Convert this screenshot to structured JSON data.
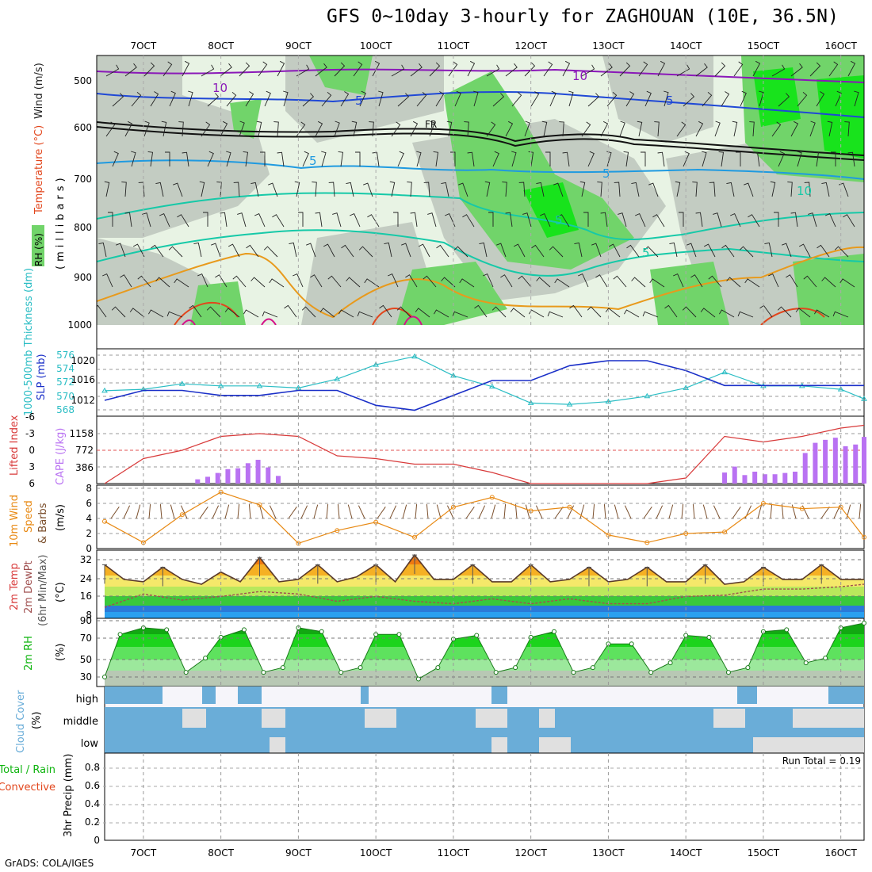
{
  "title": "GFS 0~10day 3-hourly for ZAGHOUAN (10E, 36.5N)",
  "credit": "GrADS: COLA/IGES",
  "colors": {
    "rh_light": "#e8f3e4",
    "rh_mid": "#c3ccc2",
    "rh_green": "#71d46a",
    "rh_bright": "#18e31c",
    "wind_barb": "#222222",
    "temp_purple": "#8a18b8",
    "temp_blue": "#1f48d6",
    "temp_lightblue": "#1f9ae0",
    "temp_teal": "#16c9a8",
    "temp_orange": "#e89a1c",
    "temp_red": "#e2461c",
    "temp_magenta": "#d4138a",
    "slp_line": "#1a2fc8",
    "thickness_line": "#2abdc4",
    "li_line": "#d83a3a",
    "cape_bar": "#b972f2",
    "wind10_line": "#e88a15",
    "barb_brown": "#7b4f2c",
    "dewpt_line": "#a05050",
    "tmax_bar": "#555555",
    "rh2m_dark": "#0fb40f",
    "cloud_blue": "#6aadd8",
    "cloud_gray": "#e0e0e0",
    "cloud_white": "#f6f5fa"
  },
  "x_axis": {
    "labels": [
      "7OCT",
      "8OCT",
      "9OCT",
      "10OCT",
      "11OCT",
      "12OCT",
      "13OCT",
      "14OCT",
      "15OCT",
      "16OCT"
    ],
    "start_day": 6.5,
    "end_day": 16.3
  },
  "panels": {
    "upper": {
      "ylabel_rh": "RH (%)",
      "ylabel_temp": "Temperature (°C)",
      "ylabel_wind": "Wind (m/s)",
      "ylabel_units": "(millibars)",
      "yticks": [
        500,
        600,
        700,
        800,
        900,
        1000
      ],
      "contour_labels": [
        "10",
        "10",
        "5",
        "5",
        "5",
        "FR",
        "5",
        "5",
        "10",
        "5"
      ]
    },
    "thickness": {
      "ylabel_left": "1000-500mb Thickness (dm)",
      "ylabel_right": "SLP (mb)",
      "yticks_left": [
        568,
        570,
        572,
        574,
        576
      ],
      "yticks_right": [
        1012,
        1016,
        1020
      ]
    },
    "instability": {
      "ylabel_left": "Lifted Index",
      "ylabel_right": "CAPE (J/kg)",
      "yticks_left": [
        "6",
        "3",
        "0",
        "-3",
        "-6"
      ],
      "yticks_right": [
        "386",
        "772",
        "1158"
      ]
    },
    "wind10": {
      "ylabel_a": "10m Wind",
      "ylabel_b": "Speed",
      "ylabel_c": "& Barbs",
      "ylabel_units": "(m/s)",
      "yticks": [
        0,
        2,
        4,
        6,
        8
      ]
    },
    "temp2m": {
      "ylabel_a": "2m Temp",
      "ylabel_b": "2m DewPt",
      "ylabel_c": "(6hr Min/Max)",
      "ylabel_units": "(°C)",
      "yticks": [
        8,
        16,
        24,
        32
      ]
    },
    "rh2m": {
      "ylabel": "2m RH",
      "ylabel_units": "(%)",
      "yticks": [
        30,
        50,
        70,
        90
      ]
    },
    "cloud": {
      "ylabel": "Cloud Cover",
      "ylabel_units": "(%)",
      "levels": [
        "high",
        "middle",
        "low"
      ]
    },
    "precip": {
      "ylabel_a": "Total / Rain",
      "ylabel_b": "Convective",
      "ylabel_c": "3hr Precip (mm)",
      "yticks": [
        "0",
        "0.2",
        "0.4",
        "0.6",
        "0.8"
      ],
      "run_total": "Run Total = 0.19"
    }
  },
  "chart_data": [
    {
      "type": "line",
      "name": "slp_mb",
      "x": [
        6.5,
        7.0,
        7.5,
        8.0,
        8.5,
        9.0,
        9.5,
        10.0,
        10.5,
        11.0,
        11.5,
        12.0,
        12.5,
        13.0,
        13.5,
        14.0,
        14.5,
        15.0,
        15.5,
        16.0,
        16.3
      ],
      "values": [
        1012,
        1014,
        1014,
        1013,
        1013,
        1014,
        1014,
        1011,
        1010,
        1013,
        1016,
        1016,
        1019,
        1020,
        1020,
        1018,
        1015,
        1015,
        1015,
        1015,
        1015
      ]
    },
    {
      "type": "line",
      "name": "thickness_dm",
      "x": [
        6.5,
        7.0,
        7.5,
        8.0,
        8.5,
        9.0,
        9.5,
        10.0,
        10.5,
        11.0,
        11.5,
        12.0,
        12.5,
        13.0,
        13.5,
        14.0,
        14.5,
        15.0,
        15.5,
        16.0,
        16.3
      ],
      "values": [
        570.8,
        571.0,
        571.8,
        571.5,
        571.5,
        571.2,
        572.5,
        574.6,
        575.8,
        573.0,
        571.4,
        569.0,
        568.8,
        569.2,
        570.0,
        571.2,
        573.5,
        571.5,
        571.5,
        571.0,
        569.6
      ]
    },
    {
      "type": "line",
      "name": "lifted_index",
      "x": [
        6.5,
        7.0,
        7.5,
        8.0,
        8.5,
        9.0,
        9.5,
        10.0,
        10.5,
        11.0,
        11.5,
        12.0,
        12.5,
        13.0,
        13.5,
        14.0,
        14.5,
        15.0,
        15.5,
        16.0,
        16.3
      ],
      "values": [
        6,
        1.5,
        0,
        -2.5,
        -3,
        -2.5,
        1,
        1.5,
        2.5,
        2.5,
        4,
        6,
        6,
        6,
        6,
        5,
        -2.5,
        -1.5,
        -2.5,
        -4,
        -4.5
      ]
    },
    {
      "type": "bar",
      "name": "cape_jkg",
      "x": [
        7.7,
        7.83,
        7.96,
        8.09,
        8.22,
        8.35,
        8.48,
        8.61,
        8.74,
        14.5,
        14.63,
        14.76,
        14.89,
        15.02,
        15.15,
        15.28,
        15.41,
        15.54,
        15.67,
        15.8,
        15.93,
        16.06,
        16.19,
        16.3
      ],
      "values": [
        100,
        160,
        250,
        340,
        360,
        480,
        560,
        380,
        180,
        260,
        400,
        200,
        280,
        220,
        220,
        250,
        280,
        720,
        960,
        1030,
        1080,
        880,
        920,
        1100
      ]
    },
    {
      "type": "line",
      "name": "wind10m_ms",
      "x": [
        6.5,
        7.0,
        7.5,
        8.0,
        8.5,
        9.0,
        9.5,
        10.0,
        10.5,
        11.0,
        11.5,
        12.0,
        12.5,
        13.0,
        13.5,
        14.0,
        14.5,
        15.0,
        15.5,
        16.0,
        16.3
      ],
      "values": [
        3.6,
        0.8,
        4.5,
        7.5,
        5.8,
        0.7,
        2.4,
        3.5,
        1.5,
        5.5,
        6.8,
        5.0,
        5.5,
        1.8,
        0.8,
        2.0,
        2.2,
        6.0,
        5.3,
        5.5,
        1.5
      ]
    },
    {
      "type": "line",
      "name": "temp2m_c",
      "x": [
        6.5,
        6.75,
        7.0,
        7.25,
        7.5,
        7.75,
        8.0,
        8.25,
        8.5,
        8.75,
        9.0,
        9.25,
        9.5,
        9.75,
        10.0,
        10.25,
        10.5,
        10.75,
        11.0,
        11.25,
        11.5,
        11.75,
        12.0,
        12.25,
        12.5,
        12.75,
        13.0,
        13.25,
        13.5,
        13.75,
        14.0,
        14.25,
        14.5,
        14.75,
        15.0,
        15.25,
        15.5,
        15.75,
        16.0,
        16.3
      ],
      "values": [
        28,
        22,
        21,
        27,
        22,
        20,
        25,
        21,
        31,
        21,
        22,
        28,
        21,
        23,
        28,
        21,
        32,
        22,
        22,
        28,
        21,
        21,
        28,
        21,
        22,
        27,
        21,
        22,
        27,
        21,
        21,
        28,
        20,
        21,
        27,
        22,
        22,
        28,
        22,
        22
      ]
    },
    {
      "type": "line",
      "name": "dewpt2m_c",
      "x": [
        6.5,
        7.0,
        7.5,
        8.0,
        8.5,
        9.0,
        9.5,
        10.0,
        10.5,
        11.0,
        11.5,
        12.0,
        12.5,
        13.0,
        13.5,
        14.0,
        14.5,
        15.0,
        15.5,
        16.0,
        16.3
      ],
      "values": [
        10.5,
        16,
        13.5,
        15,
        17,
        16,
        13,
        15,
        13,
        12,
        14,
        12,
        14,
        12,
        12,
        15,
        15.5,
        18,
        18,
        19,
        20
      ]
    },
    {
      "type": "area",
      "name": "rh2m_pct",
      "x": [
        6.5,
        6.7,
        7.0,
        7.3,
        7.55,
        7.8,
        8.0,
        8.3,
        8.55,
        8.8,
        9.0,
        9.3,
        9.55,
        9.8,
        10.0,
        10.3,
        10.55,
        10.8,
        11.0,
        11.3,
        11.55,
        11.8,
        12.0,
        12.3,
        12.55,
        12.8,
        13.0,
        13.3,
        13.55,
        13.8,
        14.0,
        14.3,
        14.55,
        14.8,
        15.0,
        15.3,
        15.55,
        15.8,
        16.0,
        16.3
      ],
      "values": [
        30,
        75,
        82,
        80,
        35,
        50,
        72,
        80,
        35,
        40,
        82,
        78,
        35,
        40,
        75,
        75,
        28,
        40,
        70,
        74,
        35,
        40,
        72,
        78,
        35,
        40,
        65,
        65,
        35,
        45,
        74,
        72,
        35,
        40,
        78,
        80,
        45,
        50,
        82,
        87
      ]
    },
    {
      "type": "table",
      "name": "cloud_cover_levels",
      "categories": [
        "high",
        "middle",
        "low"
      ],
      "values": [
        "broken",
        "mostly cloudy",
        "mostly cloudy"
      ]
    },
    {
      "type": "bar",
      "name": "precip3hr_mm",
      "x": [],
      "values": [],
      "ylim": [
        0,
        0.95
      ]
    }
  ]
}
